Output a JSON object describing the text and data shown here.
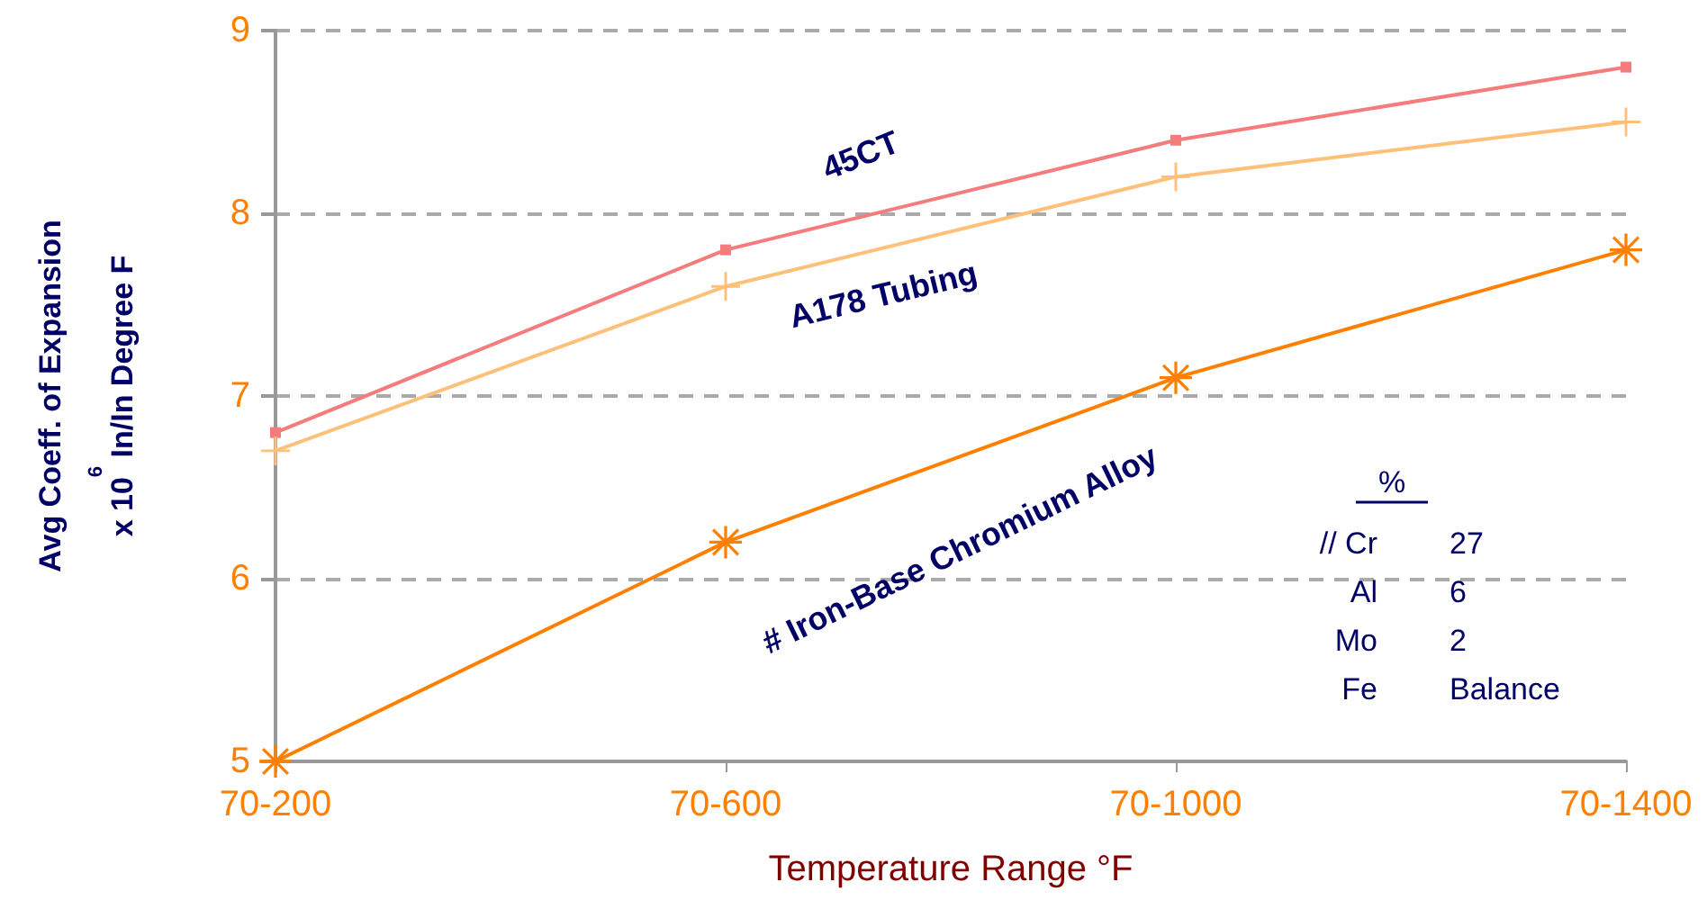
{
  "chart_data": {
    "type": "line",
    "xlabel": "Temperature Range °F",
    "ylabel": "Avg Coeff. of Expansion\nx 10$^{6}$ In/In Degree F",
    "categories": [
      "70-200",
      "70-600",
      "70-1000",
      "70-1400"
    ],
    "series": [
      {
        "name": "45CT",
        "color": "#f47c7c",
        "marker": "square",
        "values": [
          6.8,
          7.8,
          8.4,
          8.8
        ]
      },
      {
        "name": "A178 Tubing",
        "color": "#ffc07a",
        "marker": "cross",
        "values": [
          6.7,
          7.6,
          8.2,
          8.5
        ]
      },
      {
        "name": "# Iron-Base Chromium Alloy",
        "color": "#ff8000",
        "marker": "star",
        "values": [
          5.0,
          6.2,
          7.1,
          7.8
        ]
      }
    ],
    "ylim": [
      5,
      9
    ],
    "yticks": [
      5,
      6,
      7,
      8,
      9
    ],
    "grid": "y",
    "legend": false,
    "annotations": [
      "%",
      "// Cr",
      "27",
      "Al",
      "6",
      "Mo",
      "2",
      "Fe",
      "Balance"
    ]
  }
}
